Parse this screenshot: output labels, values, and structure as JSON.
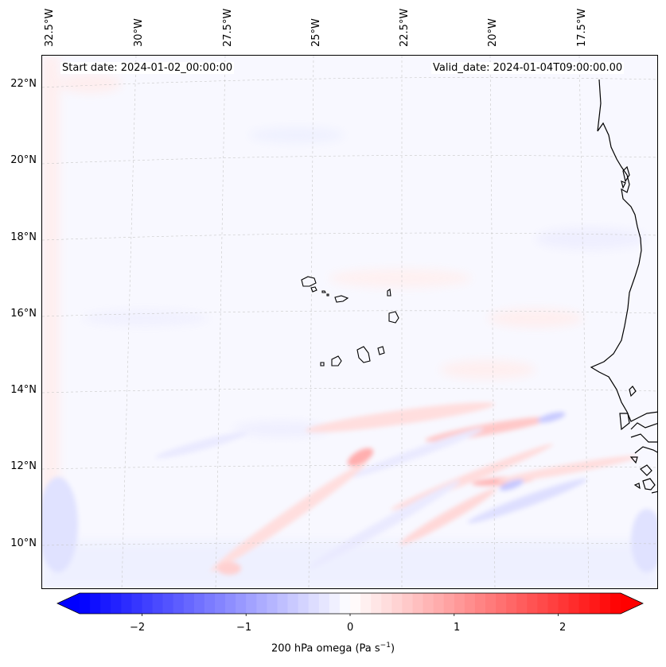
{
  "header": {
    "start_date": "Start date: 2024-01-02_00:00:00",
    "valid_date": "Valid_date: 2024-01-04T09:00:00.00"
  },
  "lon_labels": [
    "32.5°W",
    "30°W",
    "27.5°W",
    "25°W",
    "22.5°W",
    "20°W",
    "17.5°W"
  ],
  "lat_labels": [
    "22°N",
    "20°N",
    "18°N",
    "16°N",
    "14°N",
    "12°N",
    "10°N"
  ],
  "colorbar": {
    "ticks": [
      "−2",
      "−1",
      "0",
      "1",
      "2"
    ],
    "tick_values": [
      -2,
      -1,
      0,
      1,
      2
    ],
    "range": [
      -2.6,
      2.6
    ],
    "colormap": "bwr",
    "extend": "both",
    "label_prefix": "200 hPa omega (Pa s",
    "label_exp": "−1",
    "label_suffix": ")"
  },
  "colors": {
    "negative": "#0000ff",
    "positive": "#ff0000",
    "neutral": "#ffffff",
    "coastline": "#000000",
    "gridline": "#c8c8c8"
  }
}
